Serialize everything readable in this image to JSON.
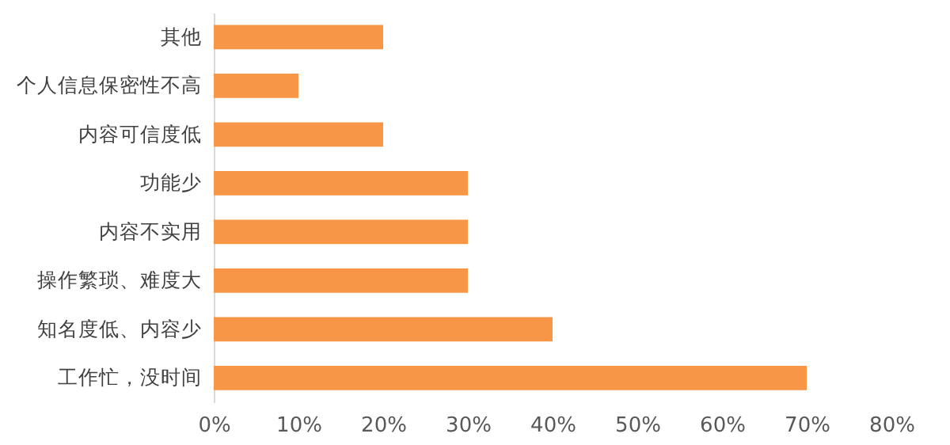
{
  "chart_data": {
    "type": "bar",
    "orientation": "horizontal",
    "categories": [
      "其他",
      "个人信息保密性不高",
      "内容可信度低",
      "功能少",
      "内容不实用",
      "操作繁琐、难度大",
      "知名度低、内容少",
      "工作忙，没时间"
    ],
    "values": [
      20,
      10,
      20,
      30,
      30,
      30,
      40,
      70
    ],
    "color": "#f79646",
    "xlim": [
      0,
      80
    ],
    "xticks": [
      {
        "value": 0,
        "label": "0%"
      },
      {
        "value": 10,
        "label": "10%"
      },
      {
        "value": 20,
        "label": "20%"
      },
      {
        "value": 30,
        "label": "30%"
      },
      {
        "value": 40,
        "label": "40%"
      },
      {
        "value": 50,
        "label": "50%"
      },
      {
        "value": 60,
        "label": "60%"
      },
      {
        "value": 70,
        "label": "70%"
      },
      {
        "value": 80,
        "label": "80%"
      }
    ],
    "grid": false
  }
}
